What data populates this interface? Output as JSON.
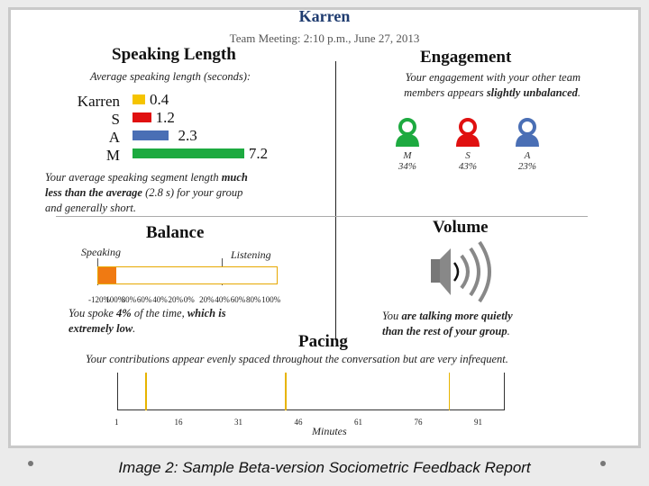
{
  "header": {
    "name": "Karren",
    "subtitle": "Team Meeting: 2:10 p.m., June 27, 2013"
  },
  "speaking_length": {
    "title": "Speaking Length",
    "subtitle": "Average speaking length (seconds):",
    "rows": [
      {
        "label": "Karren",
        "value": "0.4",
        "number": 0.4,
        "color": "#f5c400"
      },
      {
        "label": "S",
        "value": "1.2",
        "number": 1.2,
        "color": "#e01010"
      },
      {
        "label": "A",
        "value": "2.3",
        "number": 2.3,
        "color": "#4a6fb5"
      },
      {
        "label": "M",
        "value": "7.2",
        "number": 7.2,
        "color": "#1daa40"
      }
    ],
    "note_pre": "Your average speaking segment length ",
    "note_bold1": "much",
    "note_line2_bold": "less than the average",
    "note_line2_rest": " (2.8 s) for your group",
    "note_line3": "and generally short."
  },
  "engagement": {
    "title": "Engagement",
    "note_line1": "Your engagement with your other team",
    "note_line2_pre": "members appears ",
    "note_line2_bold": "slightly unbalanced",
    "note_line2_post": ".",
    "people": [
      {
        "initial": "M",
        "pct": "34%",
        "color": "#1daa40"
      },
      {
        "initial": "S",
        "pct": "43%",
        "color": "#e01010"
      },
      {
        "initial": "A",
        "pct": "23%",
        "color": "#4a6fb5"
      }
    ]
  },
  "balance": {
    "title": "Balance",
    "speaking_label": "Speaking",
    "listening_label": "Listening",
    "ticks": [
      "-120%",
      "100%",
      "80%",
      "60%",
      "40%",
      "20%",
      "0%",
      "20%",
      "40%",
      "60%",
      "80%",
      "100%"
    ],
    "note_line1_pre": "You spoke ",
    "note_line1_bold": "4%",
    "note_line1_mid": " of the time, ",
    "note_line1_bold2": "which is",
    "note_line2_bold": "extremely low",
    "note_line2_post": ".",
    "speaking_fraction": 0.04
  },
  "volume": {
    "title": "Volume",
    "note_line1_pre": "You ",
    "note_line1_bold": "are talking more quietly",
    "note_line2_bold": "than the rest of your group",
    "note_line2_post": "."
  },
  "pacing": {
    "title": "Pacing",
    "note": "Your contributions appear evenly spaced throughout the conversation but are very infrequent.",
    "ticks": [
      "1",
      "16",
      "31",
      "46",
      "61",
      "76",
      "91"
    ],
    "axis_label": "Minutes",
    "contribution_minutes": [
      8,
      43,
      84
    ]
  },
  "caption": "Image 2: Sample Beta-version Sociometric Feedback Report"
}
